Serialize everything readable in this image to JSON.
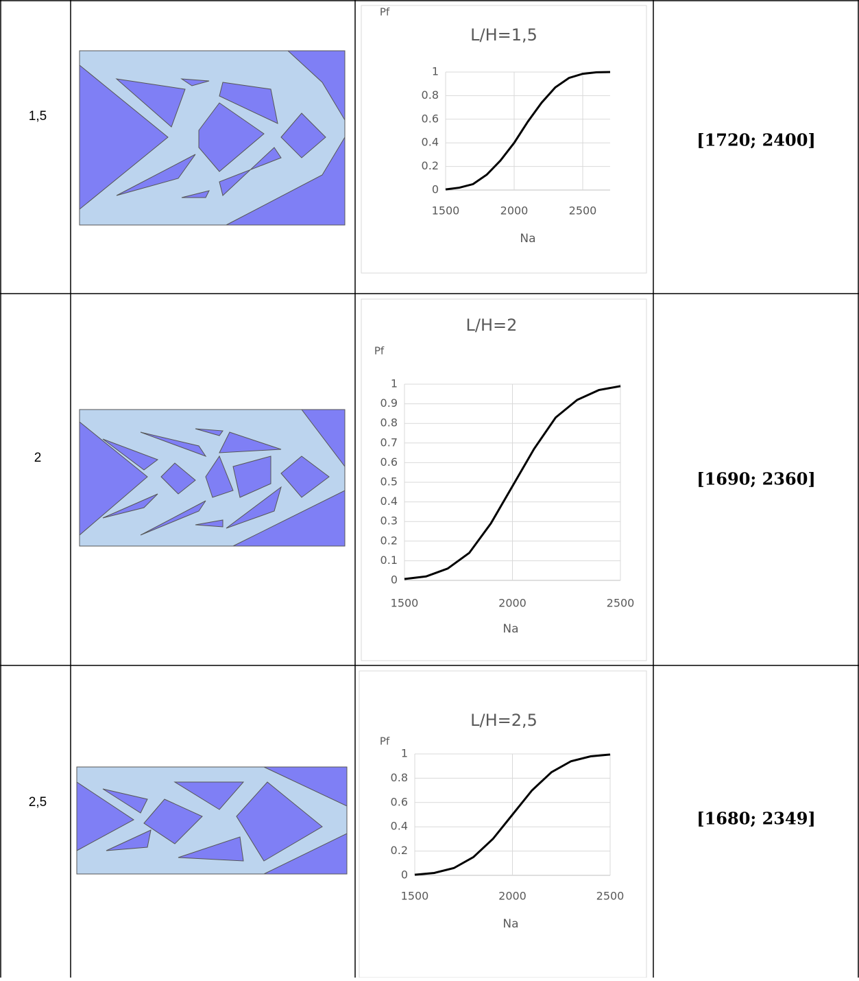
{
  "table": {
    "rows": [
      {
        "ratio": "1,5",
        "interval": "[1720; 2400]",
        "chart": {
          "type": "line",
          "title": "L/H=1,5",
          "x_label": "Na",
          "y_label": "Pf",
          "x": [
            1500,
            1600,
            1700,
            1800,
            1900,
            2000,
            2100,
            2200,
            2300,
            2400,
            2500,
            2600,
            2700
          ],
          "values": [
            0.005,
            0.02,
            0.05,
            0.13,
            0.25,
            0.4,
            0.58,
            0.74,
            0.87,
            0.95,
            0.985,
            0.998,
            1.0
          ],
          "color": "#000000",
          "xlim": [
            1500,
            2700
          ],
          "ylim": [
            0,
            1
          ],
          "xticks": [
            1500,
            2000,
            2500
          ],
          "yticks": [
            0,
            0.2,
            0.4,
            0.6,
            0.8,
            1
          ],
          "grid": true
        }
      },
      {
        "ratio": "2",
        "interval": "[1690; 2360]",
        "chart": {
          "type": "line",
          "title": "L/H=2",
          "x_label": "Na",
          "y_label": "Pf",
          "x": [
            1500,
            1600,
            1700,
            1800,
            1900,
            2000,
            2100,
            2200,
            2300,
            2400,
            2500
          ],
          "values": [
            0.007,
            0.02,
            0.06,
            0.14,
            0.29,
            0.48,
            0.67,
            0.83,
            0.92,
            0.97,
            0.99
          ],
          "color": "#000000",
          "xlim": [
            1500,
            2500
          ],
          "ylim": [
            0,
            1
          ],
          "xticks": [
            1500,
            2000,
            2500
          ],
          "yticks": [
            0,
            0.1,
            0.2,
            0.3,
            0.4,
            0.5,
            0.6,
            0.7,
            0.8,
            0.9,
            1
          ],
          "grid": true
        }
      },
      {
        "ratio": "2,5",
        "interval": "[1680; 2349]",
        "chart": {
          "type": "line",
          "title": "L/H=2,5",
          "x_label": "Na",
          "y_label": "Pf",
          "x": [
            1500,
            1600,
            1700,
            1800,
            1900,
            2000,
            2100,
            2200,
            2300,
            2400,
            2500
          ],
          "values": [
            0.005,
            0.02,
            0.06,
            0.15,
            0.3,
            0.5,
            0.7,
            0.85,
            0.94,
            0.98,
            0.995
          ],
          "color": "#000000",
          "xlim": [
            1500,
            2500
          ],
          "ylim": [
            0,
            1
          ],
          "xticks": [
            1500,
            2000,
            2500
          ],
          "yticks": [
            0,
            0.2,
            0.4,
            0.6,
            0.8,
            1
          ],
          "grid": true
        }
      }
    ]
  }
}
